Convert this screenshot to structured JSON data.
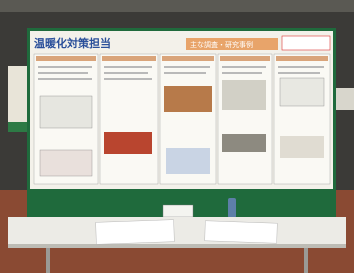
{
  "poster": {
    "title": "温暖化対策担当",
    "header": "主な調査・研究事例"
  }
}
